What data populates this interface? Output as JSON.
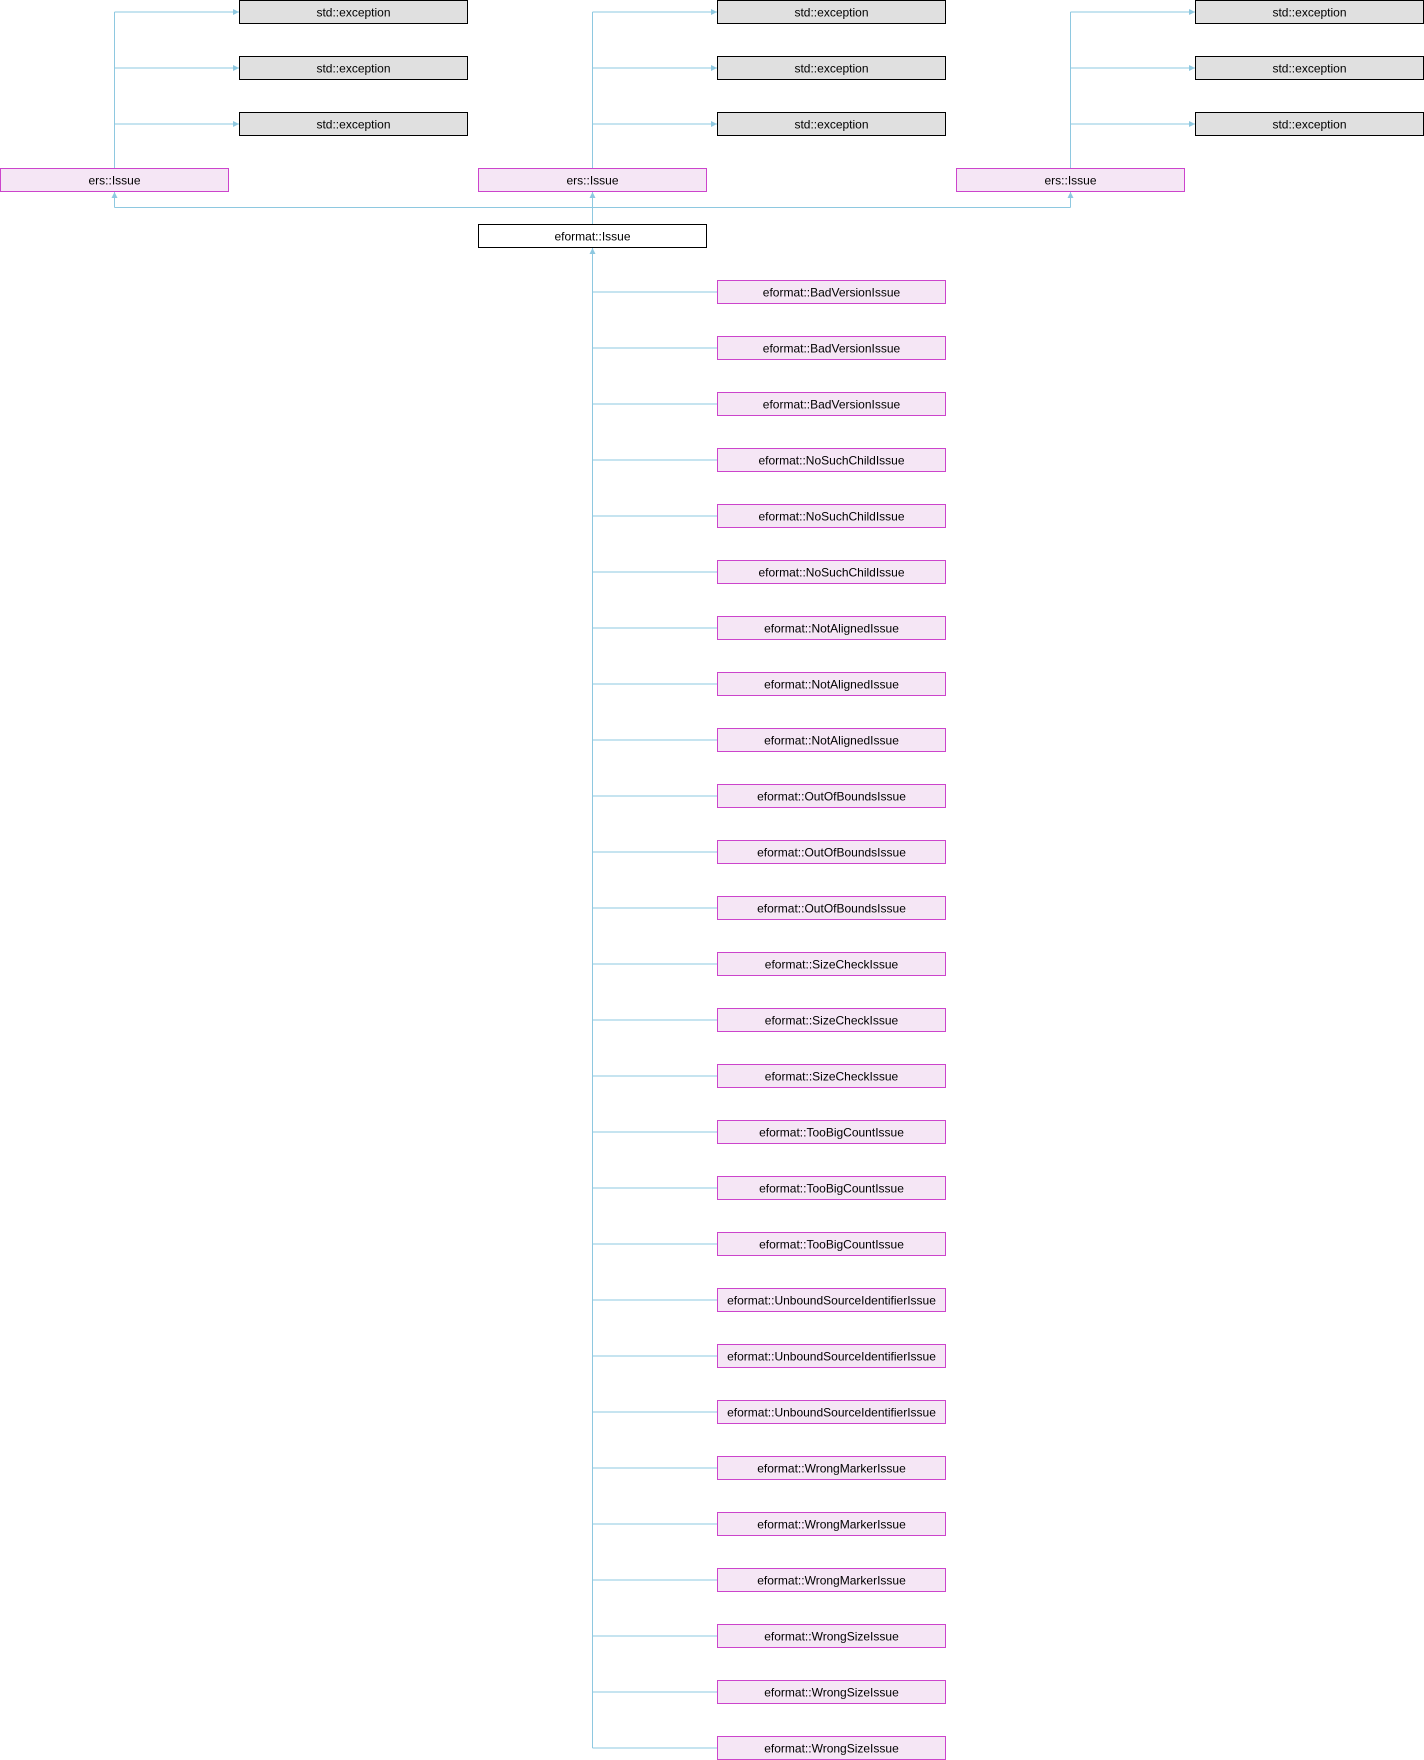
{
  "colors": {
    "edge": "#8ec8e0",
    "std_fill": "#e0e0e0",
    "std_stroke": "#000000",
    "pink_fill": "#f5e6f5",
    "pink_stroke": "#cc44cc",
    "main_fill": "#ffffff",
    "main_stroke": "#000000"
  },
  "nodes": {
    "std_exception": "std::exception",
    "ers_issue": "ers::Issue",
    "eformat_issue": "eformat::Issue",
    "derived": [
      "eformat::BadVersionIssue",
      "eformat::BadVersionIssue",
      "eformat::BadVersionIssue",
      "eformat::NoSuchChildIssue",
      "eformat::NoSuchChildIssue",
      "eformat::NoSuchChildIssue",
      "eformat::NotAlignedIssue",
      "eformat::NotAlignedIssue",
      "eformat::NotAlignedIssue",
      "eformat::OutOfBoundsIssue",
      "eformat::OutOfBoundsIssue",
      "eformat::OutOfBoundsIssue",
      "eformat::SizeCheckIssue",
      "eformat::SizeCheckIssue",
      "eformat::SizeCheckIssue",
      "eformat::TooBigCountIssue",
      "eformat::TooBigCountIssue",
      "eformat::TooBigCountIssue",
      "eformat::UnboundSourceIdentifierIssue",
      "eformat::UnboundSourceIdentifierIssue",
      "eformat::UnboundSourceIdentifierIssue",
      "eformat::WrongMarkerIssue",
      "eformat::WrongMarkerIssue",
      "eformat::WrongMarkerIssue",
      "eformat::WrongSizeIssue",
      "eformat::WrongSizeIssue",
      "eformat::WrongSizeIssue"
    ]
  }
}
